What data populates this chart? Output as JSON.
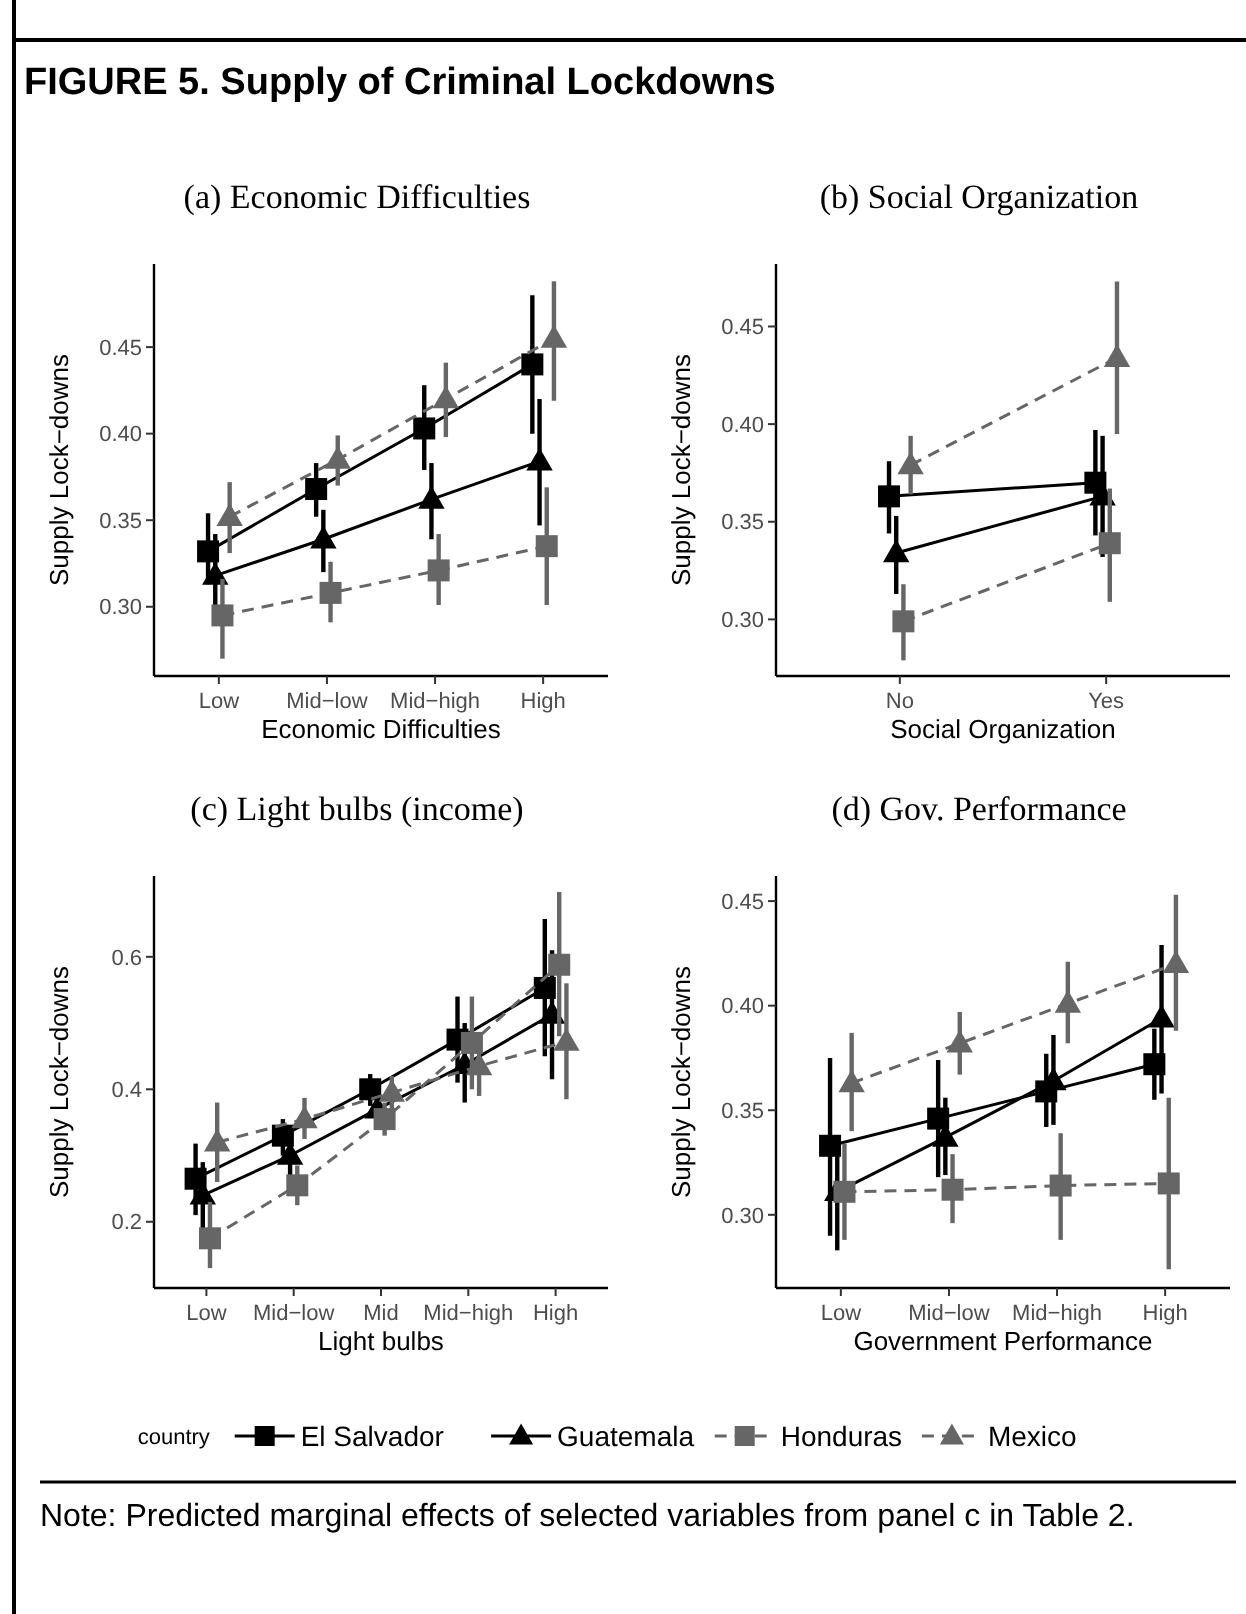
{
  "chart_data": [
    {
      "type": "line",
      "title": "FIGURE 5.  Supply of Criminal Lockdowns",
      "subtitle": "(a) Economic Difficulties",
      "xlabel": "Economic Difficulties",
      "ylabel": "Supply Lock−downs",
      "categories": [
        "Low",
        "Mid−low",
        "Mid−high",
        "High"
      ],
      "ylim": [
        0.26,
        0.498
      ],
      "yticks": [
        {
          "value": 0.3,
          "label": "0.30"
        },
        {
          "value": 0.35,
          "label": "0.35"
        },
        {
          "value": 0.4,
          "label": "0.40"
        },
        0.45
      ],
      "grid": false,
      "series": [
        {
          "color": "#000000",
          "marker": "square",
          "line_style": "solid",
          "values": [
            0.332,
            0.368,
            0.403,
            0.44
          ],
          "errors": [
            [
              0.313,
              0.354
            ],
            [
              0.352,
              0.383
            ],
            [
              0.379,
              0.428
            ],
            [
              0.4,
              0.48
            ]
          ]
        },
        {
          "color": "#000000",
          "marker": "triangle",
          "line_style": "solid",
          "values": [
            0.318,
            0.339,
            0.362,
            0.384
          ],
          "errors": [
            [
              0.292,
              0.342
            ],
            [
              0.32,
              0.356
            ],
            [
              0.339,
              0.383
            ],
            [
              0.347,
              0.42
            ]
          ]
        },
        {
          "color": "#666666",
          "marker": "square",
          "line_style": "dashed",
          "values": [
            0.295,
            0.308,
            0.321,
            0.335
          ],
          "errors": [
            [
              0.27,
              0.316
            ],
            [
              0.291,
              0.326
            ],
            [
              0.301,
              0.342
            ],
            [
              0.301,
              0.369
            ]
          ]
        },
        {
          "color": "#666666",
          "marker": "triangle",
          "line_style": "dashed",
          "values": [
            0.352,
            0.385,
            0.42,
            0.455
          ],
          "errors": [
            [
              0.331,
              0.372
            ],
            [
              0.37,
              0.399
            ],
            [
              0.398,
              0.441
            ],
            [
              0.419,
              0.488
            ]
          ]
        }
      ]
    },
    {
      "type": "line",
      "title": "(b) Social Organization",
      "xlabel": "Social Organization",
      "ylabel": "Supply Lock−downs",
      "categories": [
        "No",
        "Yes"
      ],
      "ylim": [
        0.271,
        0.482
      ],
      "yticks": [
        {
          "value": 0.3,
          "label": "0.30"
        },
        {
          "value": 0.35,
          "label": "0.35"
        },
        {
          "value": 0.4,
          "label": "0.40"
        },
        0.45
      ],
      "grid": false,
      "series": [
        {
          "color": "#000000",
          "marker": "square",
          "line_style": "solid",
          "values": [
            0.363,
            0.37
          ],
          "errors": [
            [
              0.344,
              0.381
            ],
            [
              0.343,
              0.397
            ]
          ]
        },
        {
          "color": "#000000",
          "marker": "triangle",
          "line_style": "solid",
          "values": [
            0.334,
            0.363
          ],
          "errors": [
            [
              0.313,
              0.353
            ],
            [
              0.332,
              0.394
            ]
          ]
        },
        {
          "color": "#666666",
          "marker": "square",
          "line_style": "dashed",
          "values": [
            0.299,
            0.339
          ],
          "errors": [
            [
              0.279,
              0.318
            ],
            [
              0.309,
              0.367
            ]
          ]
        },
        {
          "color": "#666666",
          "marker": "triangle",
          "line_style": "dashed",
          "values": [
            0.379,
            0.434
          ],
          "errors": [
            [
              0.364,
              0.394
            ],
            [
              0.395,
              0.473
            ]
          ]
        }
      ]
    },
    {
      "type": "line",
      "title": "(c) Light bulbs (income)",
      "xlabel": "Light bulbs",
      "ylabel": "Supply Lock−downs",
      "categories": [
        "Low",
        "Mid−low",
        "Mid",
        "Mid−high",
        "High"
      ],
      "ylim": [
        0.1,
        0.722
      ],
      "yticks": [
        0.2,
        0.4,
        0.6
      ],
      "grid": false,
      "series": [
        {
          "color": "#000000",
          "marker": "square",
          "line_style": "solid",
          "values": [
            0.265,
            0.33,
            0.4,
            0.475,
            0.553
          ],
          "errors": [
            [
              0.21,
              0.318
            ],
            [
              0.3,
              0.355
            ],
            [
              0.375,
              0.423
            ],
            [
              0.41,
              0.54
            ],
            [
              0.45,
              0.657
            ]
          ]
        },
        {
          "color": "#000000",
          "marker": "triangle",
          "line_style": "solid",
          "values": [
            0.24,
            0.3,
            0.37,
            0.437,
            0.513
          ],
          "errors": [
            [
              0.19,
              0.29
            ],
            [
              0.27,
              0.33
            ],
            [
              0.345,
              0.395
            ],
            [
              0.38,
              0.5
            ],
            [
              0.415,
              0.61
            ]
          ]
        },
        {
          "color": "#666666",
          "marker": "square",
          "line_style": "dashed",
          "values": [
            0.175,
            0.255,
            0.355,
            0.47,
            0.588
          ],
          "errors": [
            [
              0.13,
              0.23
            ],
            [
              0.225,
              0.285
            ],
            [
              0.33,
              0.38
            ],
            [
              0.4,
              0.54
            ],
            [
              0.48,
              0.698
            ]
          ]
        },
        {
          "color": "#666666",
          "marker": "triangle",
          "line_style": "dashed",
          "values": [
            0.32,
            0.355,
            0.395,
            0.435,
            0.472
          ],
          "errors": [
            [
              0.26,
              0.38
            ],
            [
              0.325,
              0.387
            ],
            [
              0.37,
              0.42
            ],
            [
              0.39,
              0.48
            ],
            [
              0.385,
              0.56
            ]
          ]
        }
      ]
    },
    {
      "type": "line",
      "title": "(d) Gov. Performance",
      "xlabel": "Government Performance",
      "ylabel": "Supply Lock−downs",
      "categories": [
        "Low",
        "Mid−low",
        "Mid−high",
        "High"
      ],
      "ylim": [
        0.265,
        0.462
      ],
      "yticks": [
        {
          "value": 0.3,
          "label": "0.30"
        },
        {
          "value": 0.35,
          "label": "0.35"
        },
        {
          "value": 0.4,
          "label": "0.40"
        },
        0.45
      ],
      "grid": false,
      "legend": "bottom",
      "legend_title": "country",
      "annotations": [
        "Note: Predicted marginal effects of selected variables from panel c in Table 2."
      ],
      "series": [
        {
          "name": "El Salvador",
          "color": "#000000",
          "marker": "square",
          "line_style": "solid",
          "values": [
            0.333,
            0.346,
            0.359,
            0.372
          ],
          "errors": [
            [
              0.29,
              0.375
            ],
            [
              0.318,
              0.374
            ],
            [
              0.342,
              0.377
            ],
            [
              0.355,
              0.389
            ]
          ]
        },
        {
          "name": "Guatemala",
          "color": "#000000",
          "marker": "triangle",
          "line_style": "solid",
          "values": [
            0.311,
            0.337,
            0.364,
            0.394
          ],
          "errors": [
            [
              0.283,
              0.334
            ],
            [
              0.319,
              0.356
            ],
            [
              0.343,
              0.386
            ],
            [
              0.358,
              0.429
            ]
          ]
        },
        {
          "name": "Honduras",
          "color": "#666666",
          "marker": "square",
          "line_style": "dashed",
          "values": [
            0.311,
            0.312,
            0.314,
            0.315
          ],
          "errors": [
            [
              0.288,
              0.334
            ],
            [
              0.296,
              0.329
            ],
            [
              0.288,
              0.339
            ],
            [
              0.274,
              0.356
            ]
          ]
        },
        {
          "name": "Mexico",
          "color": "#666666",
          "marker": "triangle",
          "line_style": "dashed",
          "values": [
            0.363,
            0.382,
            0.401,
            0.42
          ],
          "errors": [
            [
              0.34,
              0.387
            ],
            [
              0.367,
              0.397
            ],
            [
              0.382,
              0.421
            ],
            [
              0.388,
              0.453
            ]
          ]
        }
      ]
    }
  ]
}
